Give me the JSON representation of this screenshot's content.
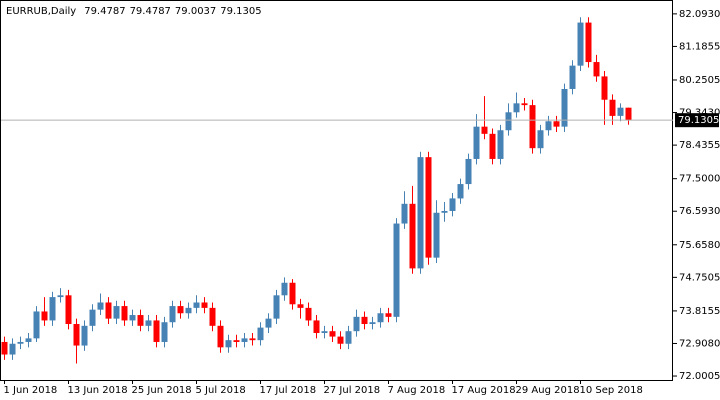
{
  "chart_data": {
    "type": "candlestick",
    "title": "EURRUB,Daily",
    "categories": [
      "1 Jun 2018",
      null,
      null,
      null,
      null,
      null,
      null,
      null,
      "13 Jun 2018",
      null,
      null,
      null,
      null,
      null,
      null,
      null,
      "25 Jun 2018",
      null,
      null,
      null,
      null,
      null,
      null,
      null,
      "5 Jul 2018",
      null,
      null,
      null,
      null,
      null,
      null,
      null,
      "17 Jul 2018",
      null,
      null,
      null,
      null,
      null,
      null,
      null,
      "27 Jul 2018",
      null,
      null,
      null,
      null,
      null,
      null,
      null,
      "7 Aug 2018",
      null,
      null,
      null,
      null,
      null,
      null,
      null,
      "17 Aug 2018",
      null,
      null,
      null,
      null,
      null,
      null,
      null,
      "29 Aug 2018",
      null,
      null,
      null,
      null,
      null,
      null,
      null,
      "10 Sep 2018",
      null,
      null,
      null,
      null,
      null,
      null
    ],
    "open": [
      72.95,
      72.6,
      72.9,
      72.95,
      73.05,
      73.8,
      73.55,
      74.2,
      74.25,
      73.45,
      72.85,
      73.4,
      73.85,
      74.05,
      73.6,
      73.95,
      73.55,
      73.7,
      73.4,
      73.55,
      72.95,
      73.5,
      73.95,
      73.75,
      73.9,
      74.05,
      73.9,
      73.4,
      72.8,
      73.0,
      72.95,
      73.05,
      73.0,
      73.35,
      73.6,
      74.25,
      74.6,
      74.0,
      73.9,
      73.55,
      73.2,
      73.25,
      73.1,
      72.9,
      73.25,
      73.65,
      73.45,
      73.5,
      73.75,
      73.65,
      76.25,
      76.8,
      75.0,
      78.1,
      75.3,
      76.55,
      76.6,
      76.95,
      77.35,
      78.05,
      78.95,
      78.75,
      78.05,
      78.85,
      79.35,
      79.6,
      79.55,
      78.35,
      78.85,
      79.1,
      78.95,
      80.0,
      80.65,
      81.85,
      80.75,
      80.35,
      79.7,
      79.25,
      79.4787
    ],
    "high": [
      73.1,
      73.05,
      73.1,
      73.2,
      73.95,
      74.2,
      74.35,
      74.45,
      74.4,
      73.6,
      73.55,
      74.0,
      74.3,
      74.2,
      74.1,
      74.1,
      73.85,
      73.85,
      73.7,
      73.7,
      73.65,
      74.1,
      74.1,
      74.05,
      74.25,
      74.2,
      74.05,
      73.55,
      73.15,
      73.15,
      73.2,
      73.2,
      73.5,
      73.75,
      74.4,
      74.75,
      74.7,
      74.15,
      74.05,
      73.7,
      73.4,
      73.4,
      73.25,
      73.4,
      73.85,
      73.8,
      73.65,
      73.9,
      73.9,
      76.4,
      77.15,
      77.3,
      78.25,
      78.25,
      76.9,
      76.85,
      77.1,
      77.5,
      78.2,
      79.3,
      79.8,
      78.9,
      79.0,
      79.6,
      79.9,
      79.75,
      79.7,
      79.0,
      79.25,
      79.25,
      80.15,
      80.8,
      82.0,
      82.0,
      80.95,
      80.5,
      79.85,
      79.6,
      79.4787
    ],
    "low": [
      72.45,
      72.45,
      72.75,
      72.8,
      72.95,
      73.4,
      73.4,
      74.05,
      73.3,
      72.35,
      72.7,
      73.25,
      73.7,
      73.45,
      73.45,
      73.4,
      73.4,
      73.25,
      73.25,
      72.8,
      72.8,
      73.35,
      73.6,
      73.6,
      73.75,
      73.75,
      73.25,
      72.65,
      72.65,
      72.8,
      72.8,
      72.85,
      72.85,
      73.2,
      73.45,
      74.1,
      73.85,
      73.6,
      73.4,
      73.05,
      73.05,
      72.95,
      72.75,
      72.75,
      73.1,
      73.3,
      73.3,
      73.35,
      73.5,
      73.5,
      76.1,
      74.85,
      74.85,
      75.1,
      75.15,
      76.3,
      76.45,
      76.8,
      77.2,
      77.9,
      78.6,
      77.9,
      77.9,
      78.7,
      79.2,
      79.4,
      78.2,
      78.2,
      78.7,
      78.8,
      78.8,
      79.85,
      80.5,
      80.6,
      80.2,
      79.0,
      79.0,
      79.1,
      79.0037
    ],
    "close": [
      72.6,
      72.9,
      72.95,
      73.05,
      73.8,
      73.55,
      74.2,
      74.25,
      73.45,
      72.85,
      73.4,
      73.85,
      74.05,
      73.6,
      73.95,
      73.55,
      73.7,
      73.4,
      73.55,
      72.95,
      73.5,
      73.95,
      73.75,
      73.9,
      74.05,
      73.9,
      73.4,
      72.8,
      73.0,
      72.95,
      73.05,
      73.0,
      73.35,
      73.6,
      74.25,
      74.6,
      74.0,
      73.9,
      73.55,
      73.2,
      73.25,
      73.1,
      72.9,
      73.25,
      73.65,
      73.45,
      73.5,
      73.75,
      73.65,
      76.25,
      76.8,
      75.0,
      78.1,
      75.3,
      76.55,
      76.6,
      76.95,
      77.35,
      78.05,
      78.95,
      78.75,
      78.05,
      78.85,
      79.35,
      79.6,
      79.55,
      78.35,
      78.85,
      79.1,
      78.95,
      80.0,
      80.65,
      81.85,
      80.75,
      80.35,
      79.7,
      79.25,
      79.4787,
      79.1305
    ],
    "up_color": "#4682b4",
    "down_color": "#ff0000",
    "ylim": [
      71.89,
      82.34
    ],
    "yticks": [
      {
        "value": 82.093,
        "label": "82.0930"
      },
      81.1855,
      80.2505,
      {
        "value": 79.343,
        "label": "79.3430"
      },
      78.4355,
      {
        "value": 77.5,
        "label": "77.5000"
      },
      {
        "value": 76.593,
        "label": "76.5930"
      },
      {
        "value": 75.658,
        "label": "75.6580"
      },
      74.7505,
      73.8155,
      {
        "value": 72.908,
        "label": "72.9080"
      },
      72.0005
    ]
  }
}
